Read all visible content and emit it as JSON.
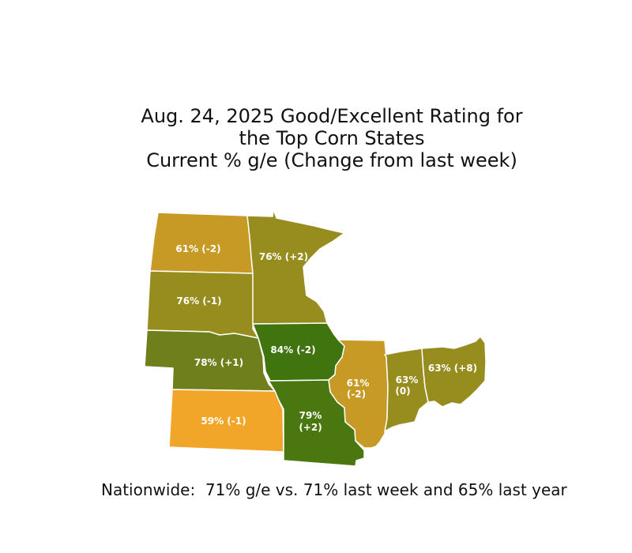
{
  "title": {
    "line1": "Aug. 24, 2025 Good/Excellent Rating for",
    "line2": "the Top Corn States",
    "line3": "Current % g/e (Change from last week)"
  },
  "states": {
    "north_dakota": {
      "line1": "61% (-2)",
      "color": "#c69a24"
    },
    "south_dakota": {
      "line1": "76% (-1)",
      "color": "#978d1e"
    },
    "nebraska": {
      "line1": "78% (+1)",
      "color": "#6f7f1b"
    },
    "kansas": {
      "line1": "59% (-1)",
      "color": "#f1a62a"
    },
    "minnesota": {
      "line1": "76% (+2)",
      "color": "#978d1e"
    },
    "iowa": {
      "line1": "84% (-2)",
      "color": "#3f740f"
    },
    "missouri": {
      "line1": "79%",
      "line2": "(+2)",
      "color": "#4a770f"
    },
    "illinois": {
      "line1": "61%",
      "line2": "(-2)",
      "color": "#c69a24"
    },
    "indiana": {
      "line1": "63%",
      "line2": "(0)",
      "color": "#978d1e"
    },
    "ohio": {
      "line1": "63% (+8)",
      "color": "#978d1e"
    }
  },
  "footer": "Nationwide:  71% g/e vs. 71% last week and 65% last year"
}
